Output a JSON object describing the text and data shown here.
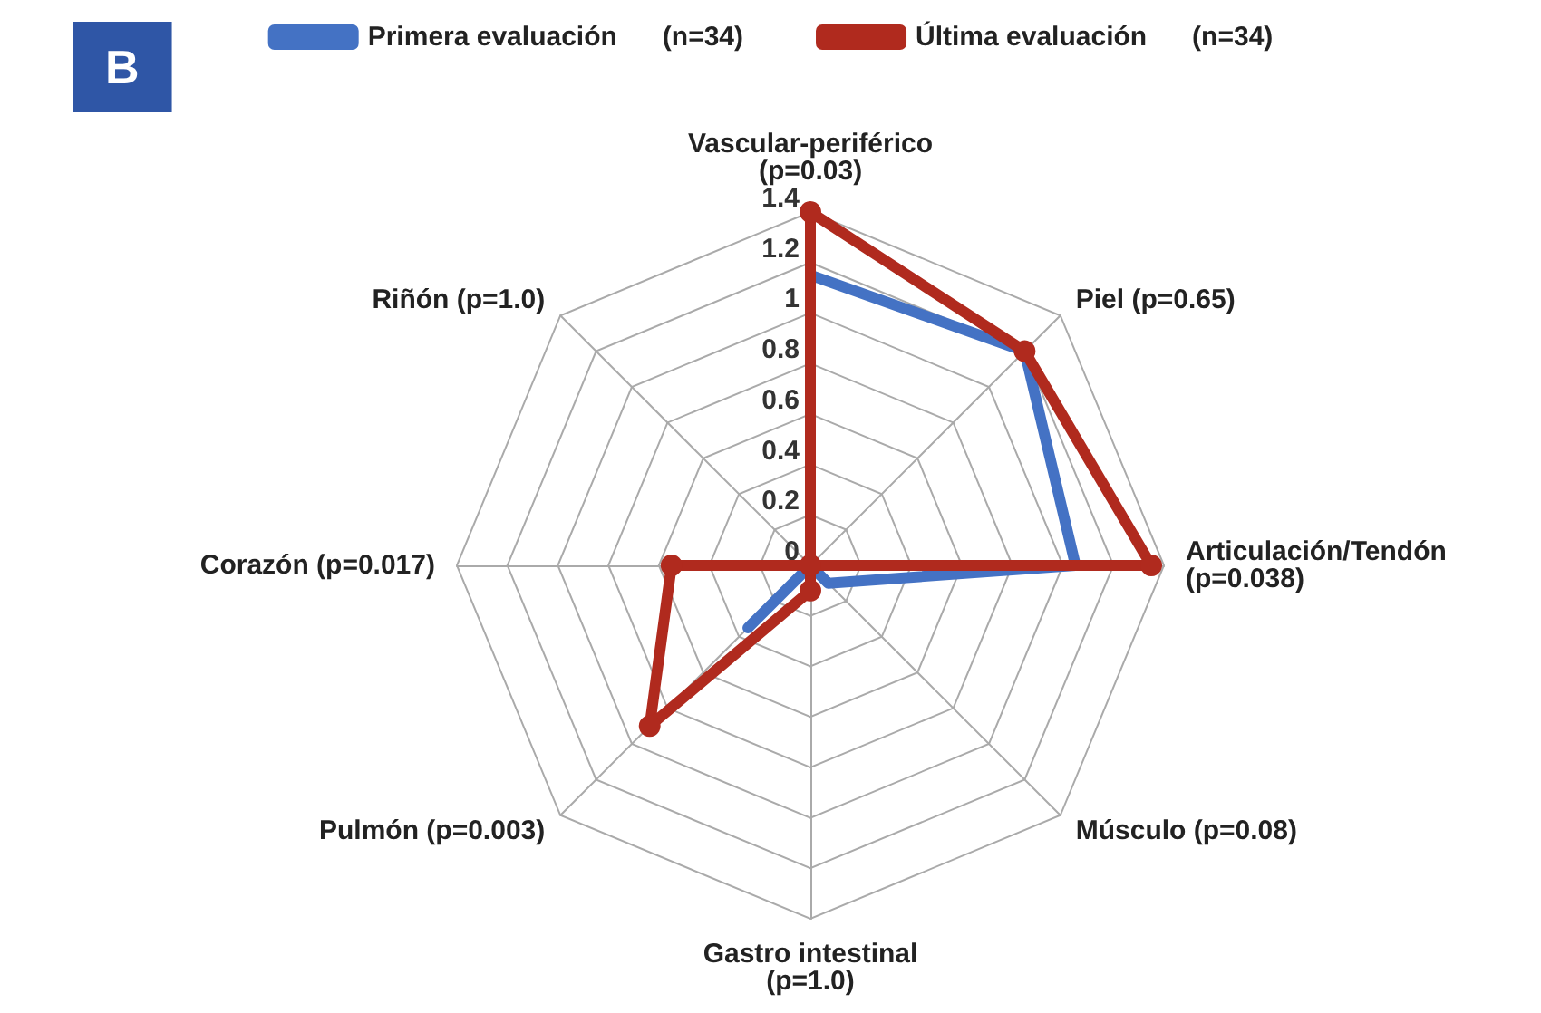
{
  "chart_data": {
    "type": "radar",
    "annotations": [
      "B"
    ],
    "categories": [
      "Vascular-periférico (p=0.03)",
      "Piel (p=0.65)",
      "Articulación/Tendón (p=0.038)",
      "Músculo (p=0.08)",
      "Gastro intestinal (p=1.0)",
      "Pulmón (p=0.003)",
      "Corazón (p=0.017)",
      "Riñón (p=1.0)"
    ],
    "series": [
      {
        "name": "Primera evaluación      (n=34)",
        "color": "#4472c4",
        "marker": "none",
        "values": [
          1.15,
          1.2,
          1.05,
          0.1,
          0,
          0.35,
          0,
          0
        ]
      },
      {
        "name": "Última evaluación      (n=34)",
        "color": "#b02a1e",
        "marker": "circle",
        "values": [
          1.4,
          1.2,
          1.35,
          0,
          0.1,
          0.9,
          0.55,
          0
        ]
      }
    ],
    "ylim": [
      0,
      1.4
    ],
    "yticks": [
      0,
      0.2,
      0.4,
      0.6,
      0.8,
      1,
      1.2,
      1.4
    ],
    "grid": true,
    "legend": "top"
  }
}
